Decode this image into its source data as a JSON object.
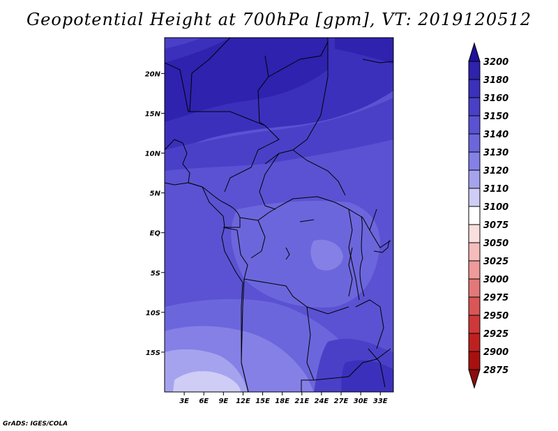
{
  "title": "Geopotential Height at 700hPa [gpm], VT: 2019120512",
  "credit": "GrADS: IGES/COLA",
  "map": {
    "lon_range": [
      0,
      35
    ],
    "lat_range": [
      -20,
      24.5
    ],
    "lon_ticks": [
      "3E",
      "6E",
      "9E",
      "12E",
      "15E",
      "18E",
      "21E",
      "24E",
      "27E",
      "30E",
      "33E"
    ],
    "lat_ticks": [
      "20N",
      "15N",
      "10N",
      "5N",
      "EQ",
      "5S",
      "10S",
      "15S"
    ]
  },
  "colorbar": {
    "levels": [
      "3200",
      "3180",
      "3160",
      "3150",
      "3140",
      "3130",
      "3120",
      "3110",
      "3100",
      "3075",
      "3050",
      "3025",
      "3000",
      "2975",
      "2950",
      "2925",
      "2900",
      "2875"
    ],
    "colors": [
      "#20109a",
      "#2e22ae",
      "#3b30bc",
      "#4a40c8",
      "#5a52d2",
      "#6c66dc",
      "#8480e6",
      "#a6a3ee",
      "#cfcdf6",
      "#ffffff",
      "#fbdede",
      "#f5bcbc",
      "#ee9a9a",
      "#e47878",
      "#da5656",
      "#ce3838",
      "#be2020",
      "#a81010",
      "#8c0c0c"
    ]
  }
}
